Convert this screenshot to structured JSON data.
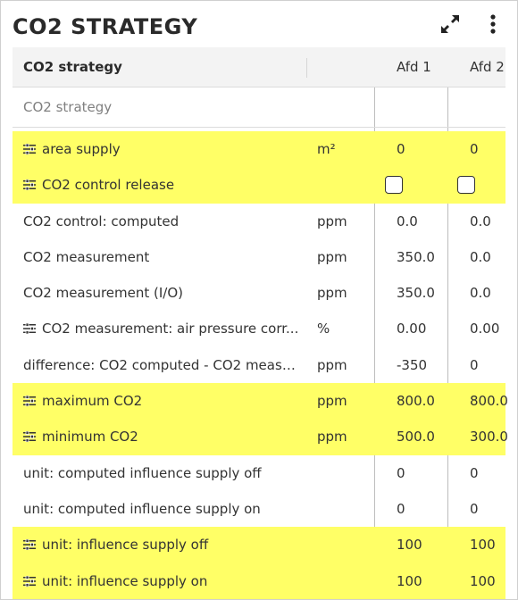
{
  "title": "CO2 STRATEGY",
  "icons": {
    "expand": "expand-icon",
    "more": "more-vertical-icon",
    "settings": "sliders-icon"
  },
  "colors": {
    "highlight": "#ffff66"
  },
  "header": {
    "name": "CO2 strategy",
    "col1": "Afd 1",
    "col2": "Afd 2"
  },
  "section": "CO2 strategy",
  "rows": [
    {
      "name": "area supply",
      "unit": "m²",
      "v1": "0",
      "v2": "0"
    },
    {
      "name": "CO2 control release",
      "unit": "",
      "v1": "",
      "v2": "",
      "checkbox1": false,
      "checkbox2": false
    },
    {
      "name": "CO2 control: computed",
      "unit": "ppm",
      "v1": "0.0",
      "v2": "0.0"
    },
    {
      "name": "CO2 measurement",
      "unit": "ppm",
      "v1": "350.0",
      "v2": "0.0"
    },
    {
      "name": "CO2 measurement (I/O)",
      "unit": "ppm",
      "v1": "350.0",
      "v2": "0.0"
    },
    {
      "name": "CO2 measurement: air pressure corr...",
      "unit": "%",
      "v1": "0.00",
      "v2": "0.00"
    },
    {
      "name": "difference: CO2 computed - CO2 measur...",
      "unit": "ppm",
      "v1": "-350",
      "v2": "0"
    },
    {
      "name": "maximum CO2",
      "unit": "ppm",
      "v1": "800.0",
      "v2": "800.0"
    },
    {
      "name": "minimum CO2",
      "unit": "ppm",
      "v1": "500.0",
      "v2": "300.0"
    },
    {
      "name": "unit: computed influence supply off",
      "unit": "",
      "v1": "0",
      "v2": "0"
    },
    {
      "name": "unit: computed influence supply on",
      "unit": "",
      "v1": "0",
      "v2": "0"
    },
    {
      "name": "unit: influence supply off",
      "unit": "",
      "v1": "100",
      "v2": "100"
    },
    {
      "name": "unit: influence supply on",
      "unit": "",
      "v1": "100",
      "v2": "100"
    }
  ]
}
